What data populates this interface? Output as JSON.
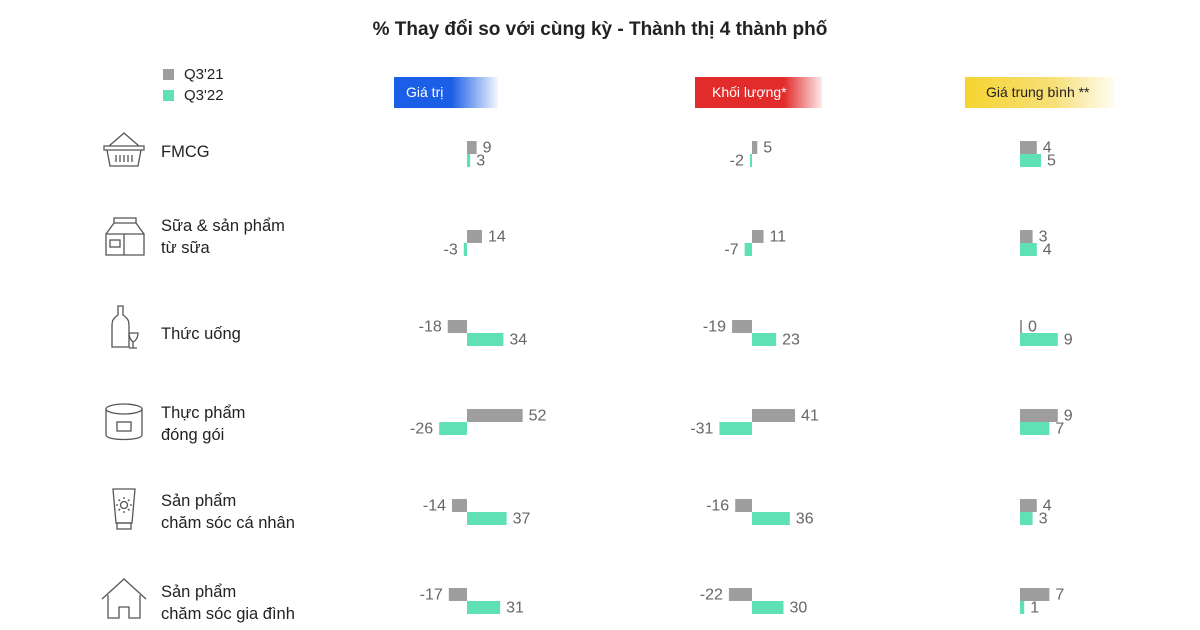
{
  "chart_data": {
    "type": "bar",
    "title": "% Thay đổi so với cùng kỳ - Thành thị 4 thành phố",
    "series_names": [
      "Q3'21",
      "Q3'22"
    ],
    "colors": {
      "Q3'21": "#9e9e9e",
      "Q3'22": "#5fe0b5"
    },
    "categories": [
      {
        "label": [
          "FMCG"
        ],
        "icon": "shopping-basket-icon"
      },
      {
        "label": [
          "Sữa & sản phẩm",
          "từ sữa"
        ],
        "icon": "milk-carton-icon"
      },
      {
        "label": [
          "Thức uống"
        ],
        "icon": "bottle-glass-icon"
      },
      {
        "label": [
          "Thực phẩm",
          "đóng gói"
        ],
        "icon": "food-can-icon"
      },
      {
        "label": [
          "Sản phẩm",
          "chăm sóc cá nhân"
        ],
        "icon": "lotion-tube-icon"
      },
      {
        "label": [
          "Sản phẩm",
          "chăm sóc gia đình"
        ],
        "icon": "house-icon"
      }
    ],
    "panels": [
      {
        "title": "Giá trị",
        "header_color": "#1a5fe6",
        "series": [
          {
            "name": "Q3'21",
            "values": [
              9,
              14,
              -18,
              52,
              -14,
              -17
            ]
          },
          {
            "name": "Q3'22",
            "values": [
              3,
              -3,
              34,
              -26,
              37,
              31
            ]
          }
        ]
      },
      {
        "title": "Khối lượng*",
        "header_color": "#e22b2b",
        "series": [
          {
            "name": "Q3'21",
            "values": [
              5,
              11,
              -19,
              41,
              -16,
              -22
            ]
          },
          {
            "name": "Q3'22",
            "values": [
              -2,
              -7,
              23,
              -31,
              36,
              30
            ]
          }
        ]
      },
      {
        "title": "Giá trung bình **",
        "header_color": "#f5d430",
        "series": [
          {
            "name": "Q3'21",
            "values": [
              4,
              3,
              0,
              9,
              4,
              7
            ]
          },
          {
            "name": "Q3'22",
            "values": [
              5,
              4,
              9,
              7,
              3,
              1
            ]
          }
        ]
      }
    ]
  }
}
